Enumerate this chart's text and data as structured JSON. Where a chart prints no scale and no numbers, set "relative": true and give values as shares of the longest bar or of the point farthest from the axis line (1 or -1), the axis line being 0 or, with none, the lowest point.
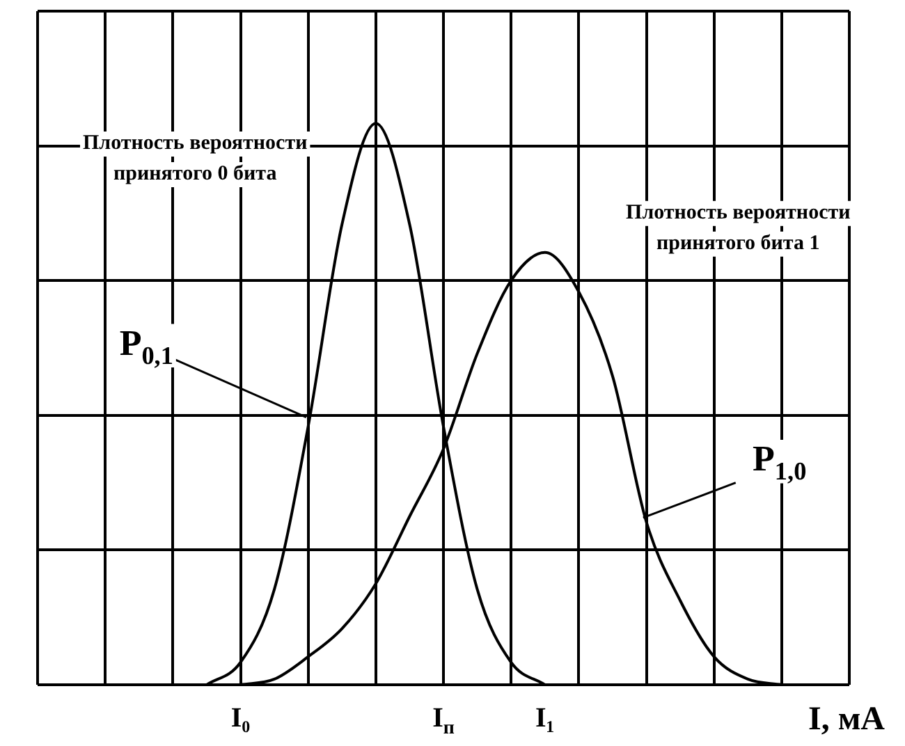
{
  "chart_data": {
    "type": "line",
    "relative": true,
    "xlabel": "I, мА",
    "categories": [
      null,
      null,
      null,
      null,
      null,
      null,
      "I₀",
      null,
      null,
      null,
      null,
      null,
      "I$_{п}$",
      null,
      null,
      "I₁",
      null,
      null,
      null,
      null,
      null,
      null,
      null,
      null,
      null
    ],
    "grid": true,
    "legend": false,
    "marker": "none",
    "line_style": "solid",
    "series": [
      {
        "color": "#000000",
        "values": [
          null,
          null,
          null,
          null,
          null,
          0,
          0.04,
          0.17,
          0.46,
          0.82,
          1,
          0.82,
          0.46,
          0.17,
          0.04,
          0,
          null,
          null,
          null,
          null,
          null,
          null,
          null,
          null,
          null
        ]
      },
      {
        "color": "#000000",
        "values": [
          null,
          null,
          null,
          null,
          null,
          null,
          0,
          0.01,
          0.05,
          0.1,
          0.18,
          0.3,
          0.42,
          0.59,
          0.72,
          0.77,
          0.7,
          0.55,
          0.29,
          0.15,
          0.05,
          0.01,
          0,
          null,
          null
        ]
      }
    ],
    "annotations": [
      "Плотность вероятности принятого 0 бита",
      "Плотность вероятности принятого бита 1",
      "P$_{0,1}$",
      "P$_{1,0}$"
    ]
  }
}
